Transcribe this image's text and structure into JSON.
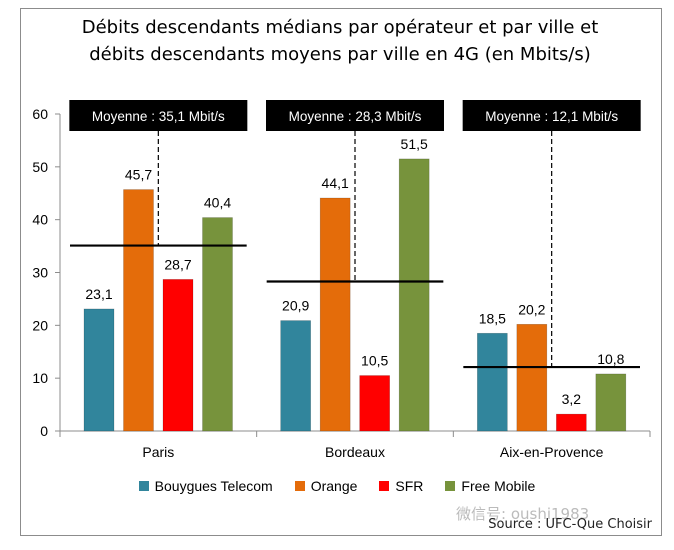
{
  "chart_data": {
    "type": "bar",
    "title_line1": "Débits descendants médians par opérateur et par ville et",
    "title_line2": "débits descendants moyens par ville en 4G (en Mbits/s)",
    "categories": [
      "Paris",
      "Bordeaux",
      "Aix-en-Provence"
    ],
    "series": [
      {
        "name": "Bouygues Telecom",
        "color": "#31859c",
        "values": [
          23.1,
          20.9,
          18.5
        ],
        "labels": [
          "23,1",
          "20,9",
          "18,5"
        ]
      },
      {
        "name": "Orange",
        "color": "#e46c0a",
        "values": [
          45.7,
          44.1,
          20.2
        ],
        "labels": [
          "45,7",
          "44,1",
          "20,2"
        ]
      },
      {
        "name": "SFR",
        "color": "#ff0000",
        "values": [
          28.7,
          10.5,
          3.2
        ],
        "labels": [
          "28,7",
          "10,5",
          "3,2"
        ]
      },
      {
        "name": "Free Mobile",
        "color": "#77933c",
        "values": [
          40.4,
          51.5,
          10.8
        ],
        "labels": [
          "40,4",
          "51,5",
          "10,8"
        ]
      }
    ],
    "averages": [
      {
        "category": "Paris",
        "value": 35.1,
        "label": "Moyenne : 35,1 Mbit/s"
      },
      {
        "category": "Bordeaux",
        "value": 28.3,
        "label": "Moyenne : 28,3 Mbit/s"
      },
      {
        "category": "Aix-en-Provence",
        "value": 12.1,
        "label": "Moyenne : 12,1 Mbit/s"
      }
    ],
    "ylim": [
      0,
      60
    ],
    "yticks": [
      0,
      10,
      20,
      30,
      40,
      50,
      60
    ],
    "grid": false,
    "legend_position": "bottom"
  },
  "source": "Source : UFC-Que Choisir",
  "watermark": "微信号: oushi1983"
}
